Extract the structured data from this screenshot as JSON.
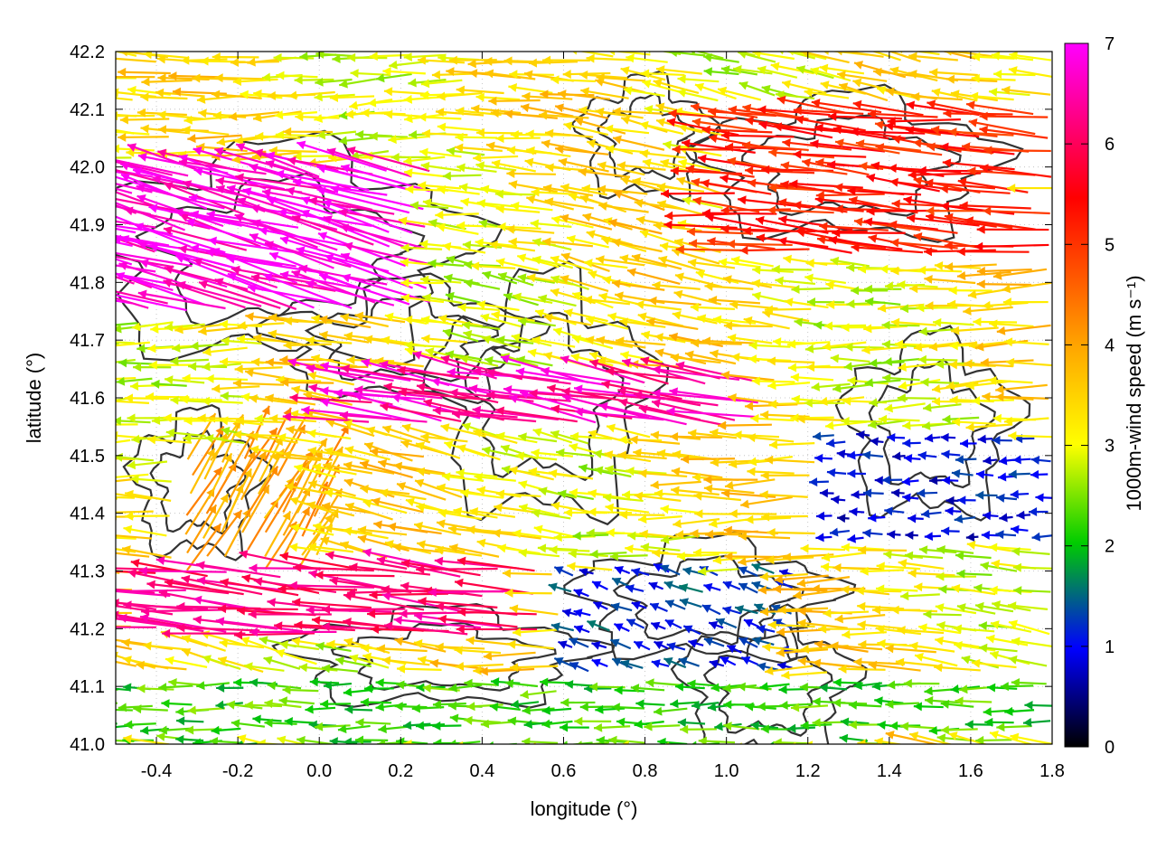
{
  "chart_data": {
    "type": "vector-field",
    "xlabel": "longitude (°)",
    "ylabel": "latitude (°)",
    "xlim": [
      -0.5,
      1.8
    ],
    "ylim": [
      41.0,
      42.2
    ],
    "xticks": [
      "-0.4",
      "-0.2",
      "0.0",
      "0.2",
      "0.4",
      "0.6",
      "0.8",
      "1.0",
      "1.2",
      "1.4",
      "1.6",
      "1.8"
    ],
    "yticks": [
      "41.0",
      "41.1",
      "41.2",
      "41.3",
      "41.4",
      "41.5",
      "41.6",
      "41.7",
      "41.8",
      "41.9",
      "42.0",
      "42.1",
      "42.2"
    ],
    "grid": true,
    "colorbar": {
      "label": "1000m-wind speed (m s⁻¹)",
      "range": [
        0,
        7
      ],
      "ticks": [
        "0",
        "1",
        "2",
        "3",
        "4",
        "5",
        "6",
        "7"
      ],
      "colors": [
        "#000000",
        "#0000ff",
        "#00cc00",
        "#ffff00",
        "#ffa500",
        "#ff0000",
        "#ff00ff"
      ]
    },
    "wind_regions": [
      {
        "lon": [
          -0.5,
          0.3
        ],
        "lat": [
          41.75,
          42.0
        ],
        "speed": 6.8,
        "direction_deg": 165
      },
      {
        "lon": [
          0.1,
          1.1
        ],
        "lat": [
          41.55,
          41.65
        ],
        "speed": 6.5,
        "direction_deg": 170
      },
      {
        "lon": [
          -0.45,
          0.55
        ],
        "lat": [
          41.18,
          41.32
        ],
        "speed": 6.2,
        "direction_deg": 175
      },
      {
        "lon": [
          1.0,
          1.8
        ],
        "lat": [
          41.85,
          42.1
        ],
        "speed": 5.2,
        "direction_deg": 175
      },
      {
        "lon": [
          1.25,
          1.8
        ],
        "lat": [
          41.35,
          41.55
        ],
        "speed": 1.0,
        "direction_deg": 180
      },
      {
        "lon": [
          0.6,
          1.2
        ],
        "lat": [
          41.1,
          41.3
        ],
        "speed": 1.2,
        "direction_deg": 160
      },
      {
        "lon": [
          -0.35,
          0.0
        ],
        "lat": [
          41.3,
          41.5
        ],
        "speed": 4.0,
        "direction_deg": 60
      },
      {
        "lon": [
          -0.5,
          1.8
        ],
        "lat": [
          41.0,
          41.12
        ],
        "speed": 2.2,
        "direction_deg": 180
      }
    ],
    "contour_color": "#333333"
  }
}
